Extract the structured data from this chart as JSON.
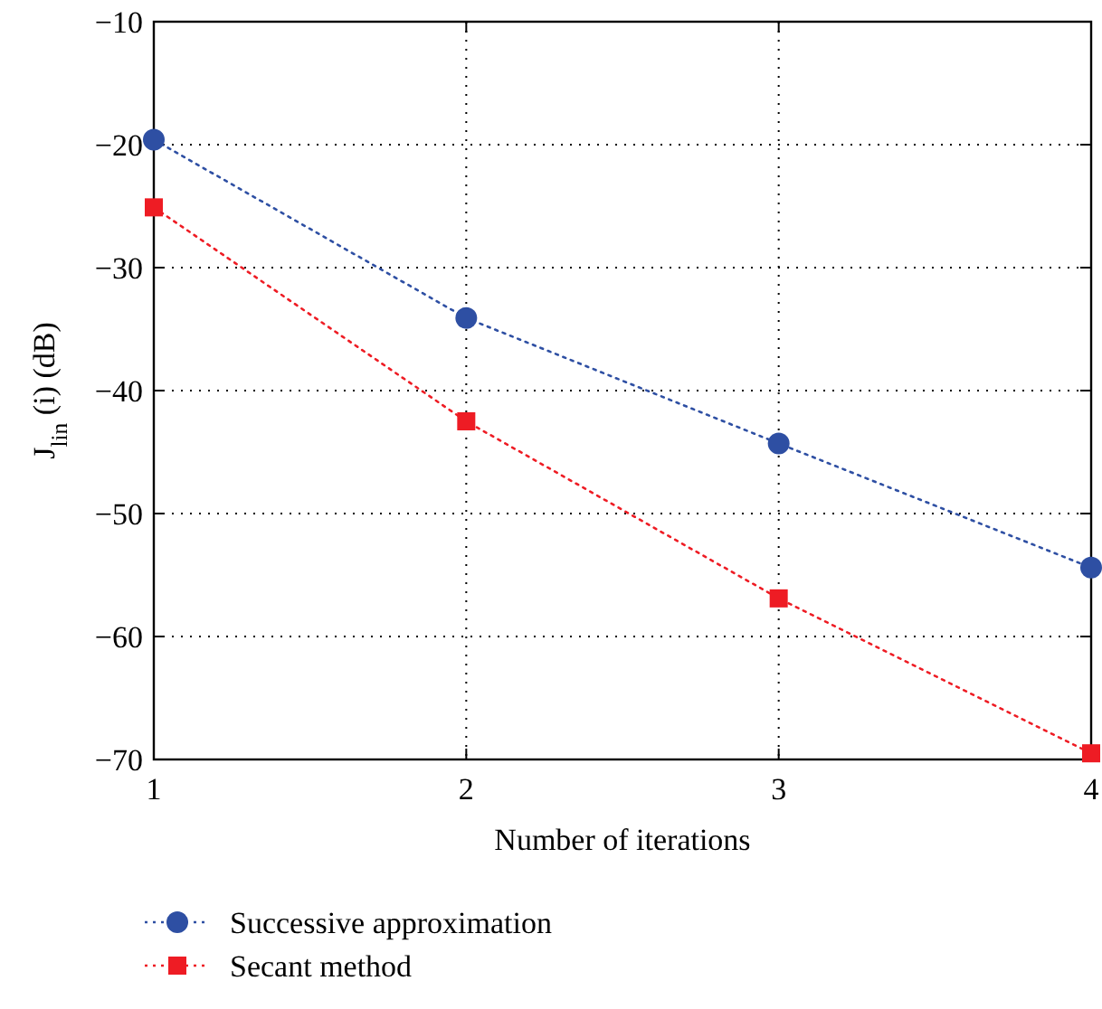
{
  "chart_data": {
    "type": "line",
    "xlabel": "Number of iterations",
    "ylabel": "J$_{lin}$ (i) (dB)",
    "x": [
      1,
      2,
      3,
      4
    ],
    "xlim": [
      1,
      4
    ],
    "xticks": [
      1,
      2,
      3,
      4
    ],
    "ylim": [
      -70,
      -10
    ],
    "yticks": [
      -70,
      -60,
      -50,
      -40,
      -30,
      -20,
      -10
    ],
    "grid": true,
    "legend": "bottom",
    "line_style": "dotted",
    "series": [
      {
        "name": "Successive approximation",
        "color": "#2e4fa3",
        "marker": "circle",
        "values": [
          -19.6,
          -34.1,
          -44.3,
          -54.4
        ]
      },
      {
        "name": "Secant method",
        "color": "#ee1c24",
        "marker": "square",
        "values": [
          -25.1,
          -42.5,
          -56.9,
          -69.5
        ]
      }
    ]
  }
}
